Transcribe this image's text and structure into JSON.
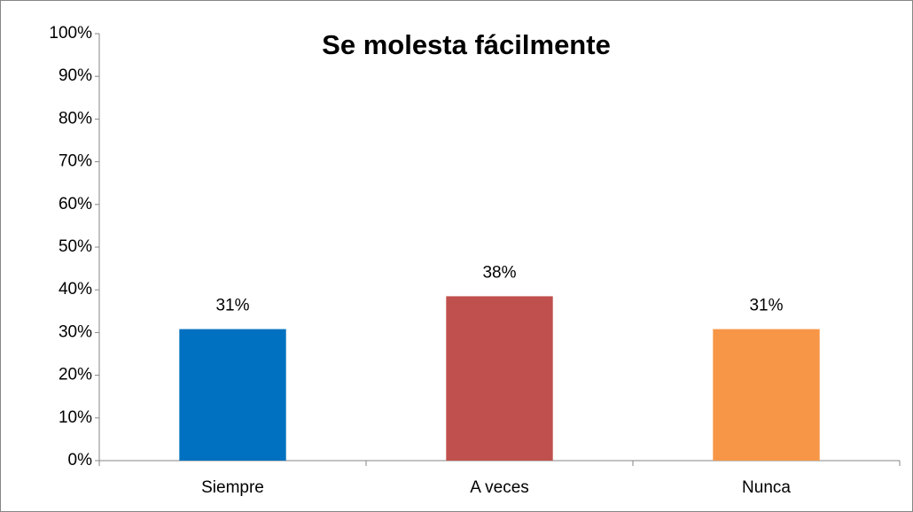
{
  "chart_data": {
    "type": "bar",
    "title": "Se molesta fácilmente",
    "categories": [
      "Siempre",
      "A veces",
      "Nunca"
    ],
    "values": [
      30.8,
      38.5,
      30.8
    ],
    "value_labels": [
      "31%",
      "38%",
      "31%"
    ],
    "colors": [
      "#0070c0",
      "#c0504d",
      "#f79646"
    ],
    "ylim": [
      0,
      100
    ],
    "yticks": [
      {
        "value": 0,
        "label": "0%"
      },
      {
        "value": 10,
        "label": "10%"
      },
      {
        "value": 20,
        "label": "20%"
      },
      {
        "value": 30,
        "label": "30%"
      },
      {
        "value": 40,
        "label": "40%"
      },
      {
        "value": 50,
        "label": "50%"
      },
      {
        "value": 60,
        "label": "60%"
      },
      {
        "value": 70,
        "label": "70%"
      },
      {
        "value": 80,
        "label": "80%"
      },
      {
        "value": 90,
        "label": "90%"
      },
      {
        "value": 100,
        "label": "100%"
      }
    ],
    "grid": false
  }
}
